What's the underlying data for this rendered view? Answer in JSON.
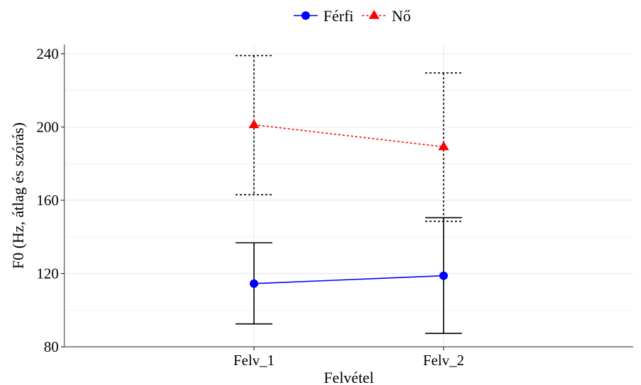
{
  "chart_data": {
    "type": "line",
    "title": "",
    "xlabel": "Felvétel",
    "ylabel": "F0 (Hz, átlag és szórás)",
    "categories": [
      "Felv_1",
      "Felv_2"
    ],
    "ylim": [
      80,
      245
    ],
    "y_ticks": [
      "80",
      "120",
      "160",
      "200",
      "240"
    ],
    "grid": true,
    "legend": {
      "position": "top",
      "entries": [
        "Férfi",
        "Nő"
      ]
    },
    "series": [
      {
        "name": "Férfi",
        "color": "#0000ff",
        "linestyle": "solid",
        "marker": "circle",
        "values": [
          114.5,
          118.8
        ],
        "error_low": [
          92.5,
          87.3
        ],
        "error_high": [
          136.8,
          150.5
        ],
        "errorbar_style": "solid"
      },
      {
        "name": "Nő",
        "color": "#ff0000",
        "linestyle": "dotted",
        "marker": "triangle",
        "values": [
          201.2,
          189.2
        ],
        "error_low": [
          163.0,
          148.5
        ],
        "error_high": [
          239.0,
          229.5
        ],
        "errorbar_style": "dotted"
      }
    ]
  }
}
